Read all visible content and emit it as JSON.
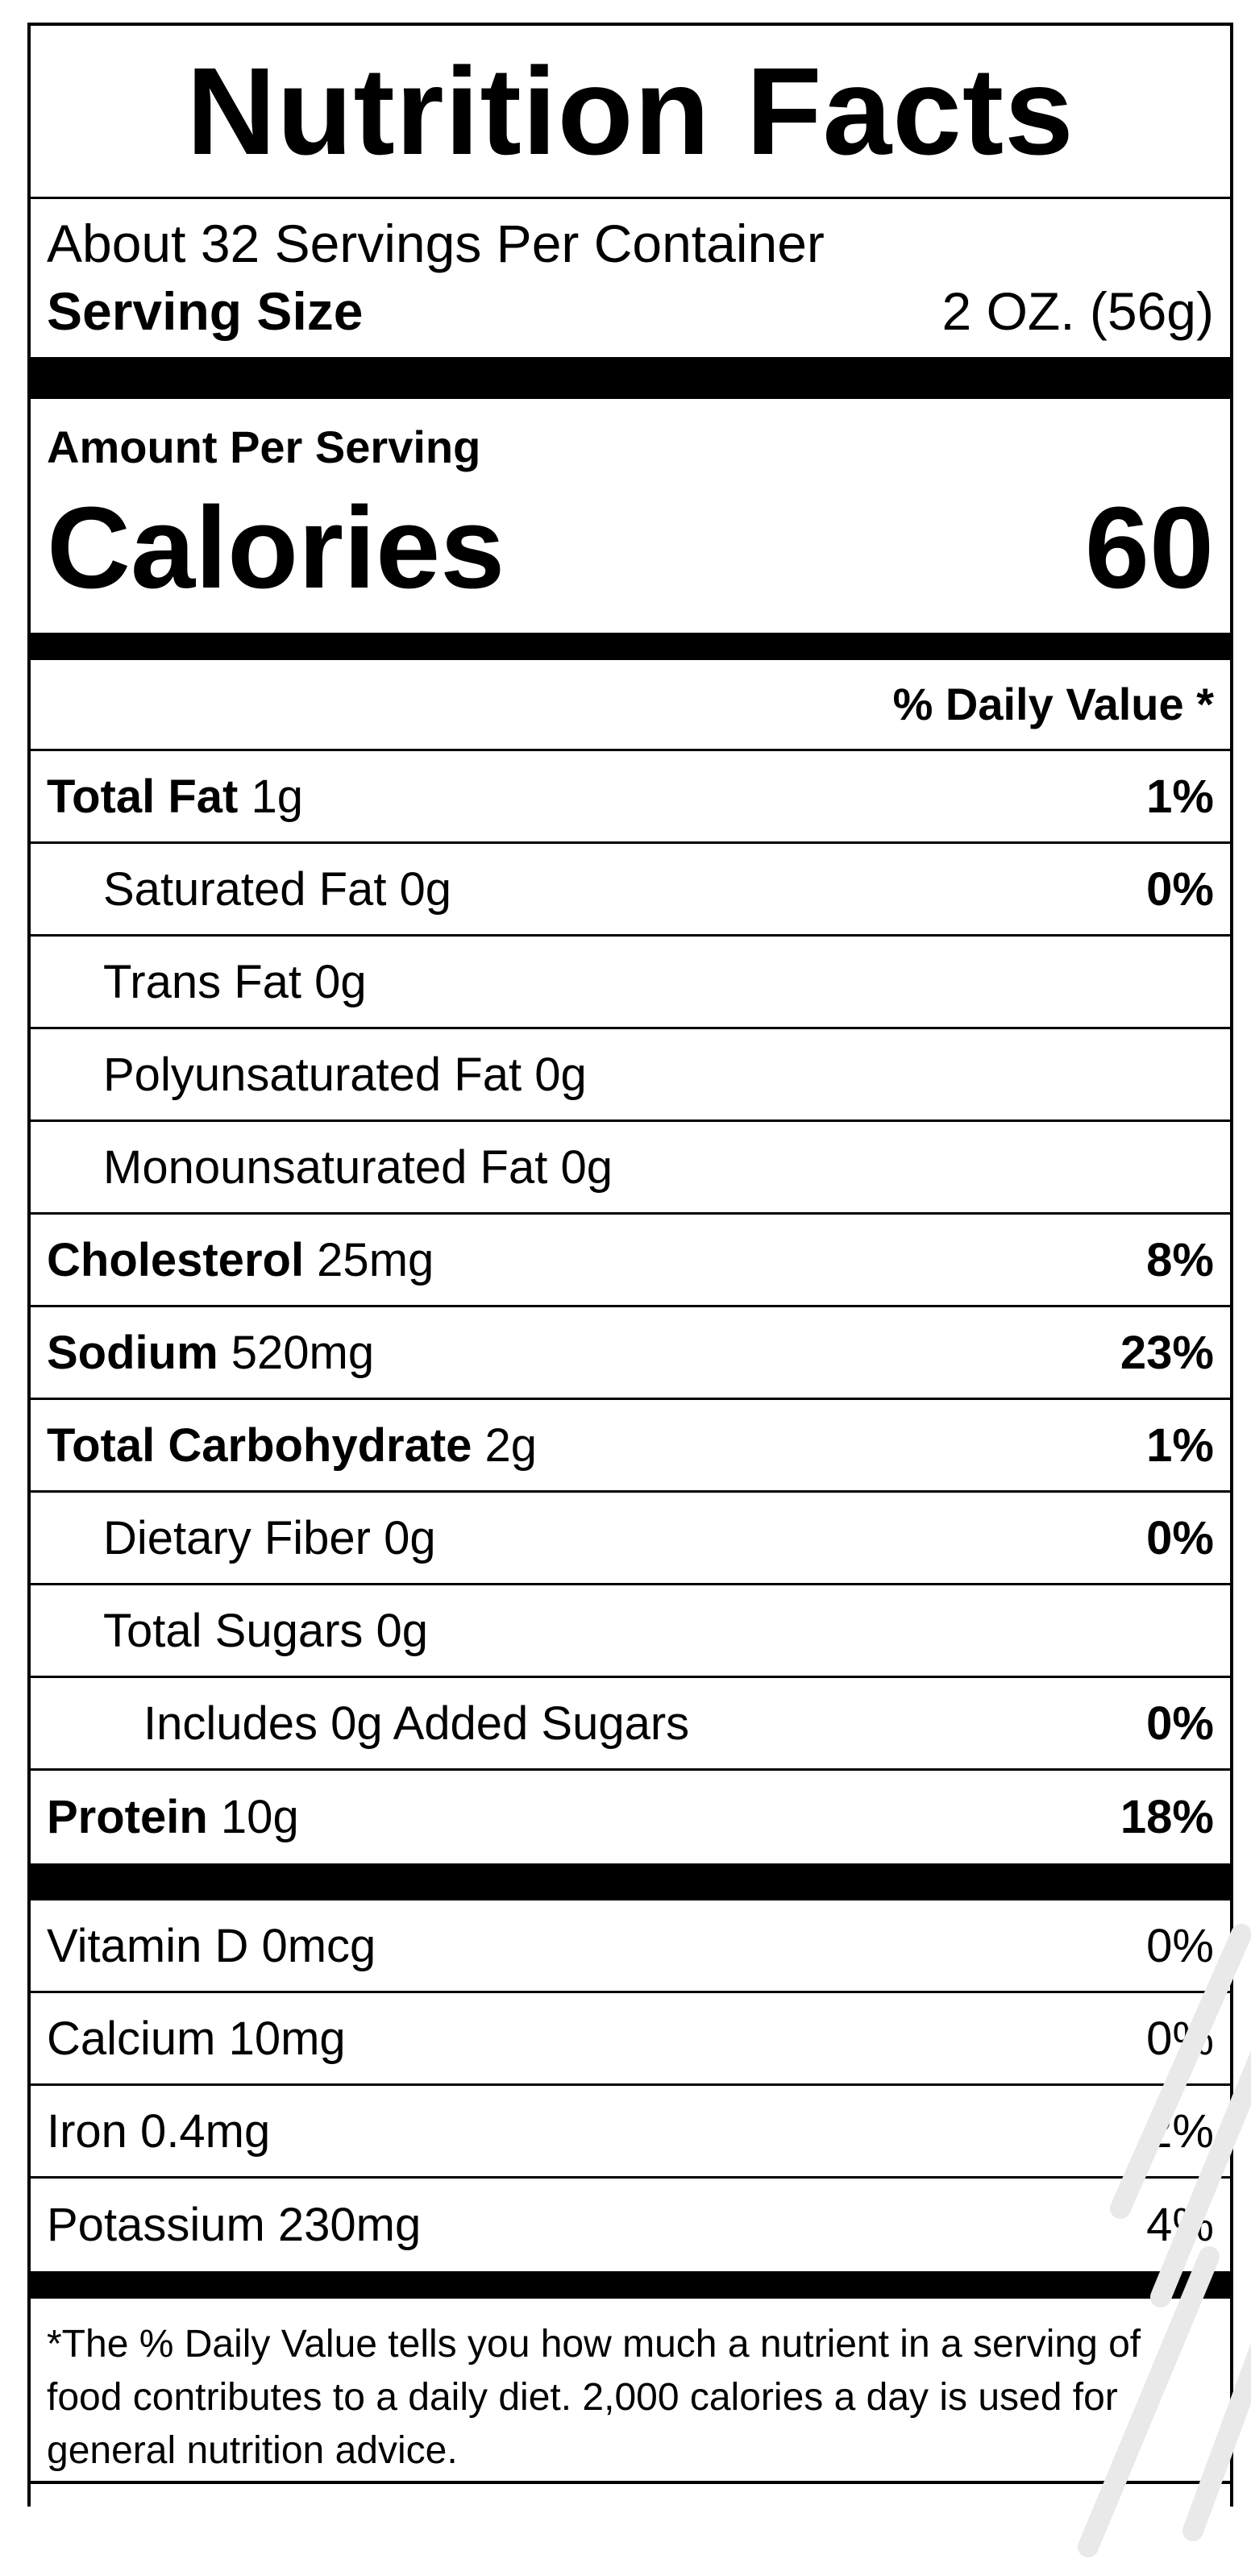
{
  "title": "Nutrition Facts",
  "servings_per_container": "About 32 Servings Per Container",
  "serving_size": {
    "label": "Serving Size",
    "value": "2 OZ. (56g)"
  },
  "amount_per_serving": "Amount Per Serving",
  "calories": {
    "label": "Calories",
    "value": "60"
  },
  "daily_value_header": "% Daily Value *",
  "nutrients": [
    {
      "name": "Total Fat",
      "amount": " 1g",
      "pct": "1%"
    },
    {
      "name": "Saturated Fat 0g",
      "amount": "",
      "pct": "0%"
    },
    {
      "name": "Trans Fat 0g",
      "amount": "",
      "pct": ""
    },
    {
      "name": "Polyunsaturated Fat 0g",
      "amount": "",
      "pct": ""
    },
    {
      "name": "Monounsaturated Fat 0g",
      "amount": "",
      "pct": ""
    },
    {
      "name": "Cholesterol",
      "amount": " 25mg",
      "pct": "8%"
    },
    {
      "name": "Sodium",
      "amount": " 520mg",
      "pct": "23%"
    },
    {
      "name": "Total Carbohydrate",
      "amount": " 2g",
      "pct": "1%"
    },
    {
      "name": "Dietary Fiber 0g",
      "amount": "",
      "pct": "0%"
    },
    {
      "name": "Total Sugars 0g",
      "amount": "",
      "pct": ""
    },
    {
      "name": "Includes 0g Added Sugars",
      "amount": "",
      "pct": "0%"
    },
    {
      "name": "Protein",
      "amount": " 10g",
      "pct": "18%"
    }
  ],
  "vitamins": [
    {
      "name": "Vitamin D 0mcg",
      "pct": "0%"
    },
    {
      "name": "Calcium 10mg",
      "pct": "0%"
    },
    {
      "name": "Iron 0.4mg",
      "pct": "2%"
    },
    {
      "name": "Potassium 230mg",
      "pct": "4%"
    }
  ],
  "footnote": "*The % Daily Value tells you how much a nutrient in a serving of food contributes to a daily diet. 2,000 calories a day is used for general nutrition advice."
}
